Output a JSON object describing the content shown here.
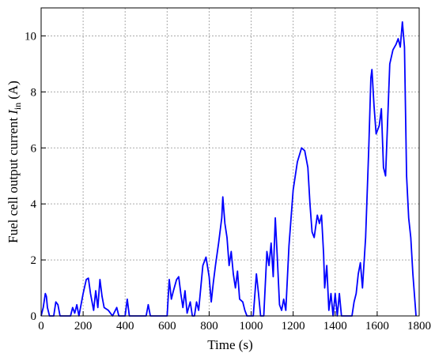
{
  "chart_data": {
    "type": "line",
    "xlabel": "Time (s)",
    "ylabel": {
      "text": "Fuel cell output current",
      "symbol": "I",
      "subscript": "in",
      "unit": "(A)"
    },
    "color": "#0000ff",
    "grid": true,
    "xlim": [
      0,
      1800
    ],
    "xticks": [
      0,
      200,
      400,
      600,
      800,
      1000,
      1200,
      1400,
      1600,
      1800
    ],
    "ylim": [
      0,
      11
    ],
    "yticks": [
      0,
      2,
      4,
      6,
      8,
      10
    ],
    "x": [
      0,
      10,
      20,
      25,
      30,
      40,
      60,
      70,
      80,
      90,
      140,
      150,
      160,
      170,
      180,
      200,
      215,
      225,
      235,
      250,
      260,
      270,
      280,
      290,
      300,
      320,
      340,
      360,
      370,
      400,
      410,
      420,
      500,
      510,
      520,
      600,
      610,
      620,
      630,
      645,
      655,
      665,
      675,
      685,
      695,
      710,
      720,
      730,
      740,
      750,
      770,
      785,
      800,
      810,
      820,
      830,
      845,
      860,
      865,
      875,
      885,
      895,
      905,
      915,
      925,
      935,
      945,
      960,
      970,
      980,
      1010,
      1025,
      1035,
      1045,
      1060,
      1075,
      1085,
      1095,
      1105,
      1115,
      1125,
      1135,
      1145,
      1155,
      1165,
      1180,
      1200,
      1220,
      1240,
      1255,
      1270,
      1280,
      1290,
      1300,
      1315,
      1325,
      1335,
      1345,
      1350,
      1360,
      1370,
      1380,
      1390,
      1400,
      1410,
      1420,
      1430,
      1480,
      1490,
      1500,
      1510,
      1520,
      1530,
      1545,
      1560,
      1570,
      1575,
      1585,
      1595,
      1610,
      1620,
      1630,
      1640,
      1650,
      1660,
      1675,
      1690,
      1700,
      1710,
      1720,
      1730,
      1740,
      1750,
      1760,
      1770,
      1785
    ],
    "values": [
      0,
      0.3,
      0.8,
      0.7,
      0.3,
      0,
      0,
      0.5,
      0.4,
      0,
      0,
      0.3,
      0.1,
      0.4,
      0,
      0.8,
      1.3,
      1.35,
      0.8,
      0.2,
      0.9,
      0.3,
      1.3,
      0.7,
      0.3,
      0.2,
      0,
      0.3,
      0,
      0,
      0.6,
      0,
      0,
      0.4,
      0,
      0,
      1.3,
      0.6,
      0.9,
      1.3,
      1.4,
      0.8,
      0.3,
      0.9,
      0.1,
      0.5,
      0,
      0,
      0.5,
      0.2,
      1.8,
      2.1,
      1.4,
      0.5,
      1.2,
      1.8,
      2.6,
      3.5,
      4.25,
      3.3,
      2.8,
      1.8,
      2.3,
      1.5,
      1.0,
      1.6,
      0.6,
      0.5,
      0.2,
      0,
      0,
      1.5,
      0.8,
      0,
      0,
      2.3,
      1.8,
      2.6,
      1.4,
      3.5,
      2.0,
      0.4,
      0.2,
      0.6,
      0.2,
      2.5,
      4.5,
      5.5,
      6.0,
      5.9,
      5.3,
      4.0,
      3.0,
      2.8,
      3.6,
      3.3,
      3.6,
      2.2,
      1.0,
      1.8,
      0.2,
      0.8,
      0,
      0.8,
      0,
      0.8,
      0,
      0,
      0.5,
      0.8,
      1.5,
      1.9,
      1.0,
      2.8,
      6.0,
      8.5,
      8.8,
      7.5,
      6.5,
      6.8,
      7.4,
      5.3,
      5.0,
      7.0,
      9.0,
      9.5,
      9.7,
      9.9,
      9.6,
      10.5,
      9.6,
      5.0,
      3.5,
      2.8,
      1.5,
      0
    ]
  }
}
